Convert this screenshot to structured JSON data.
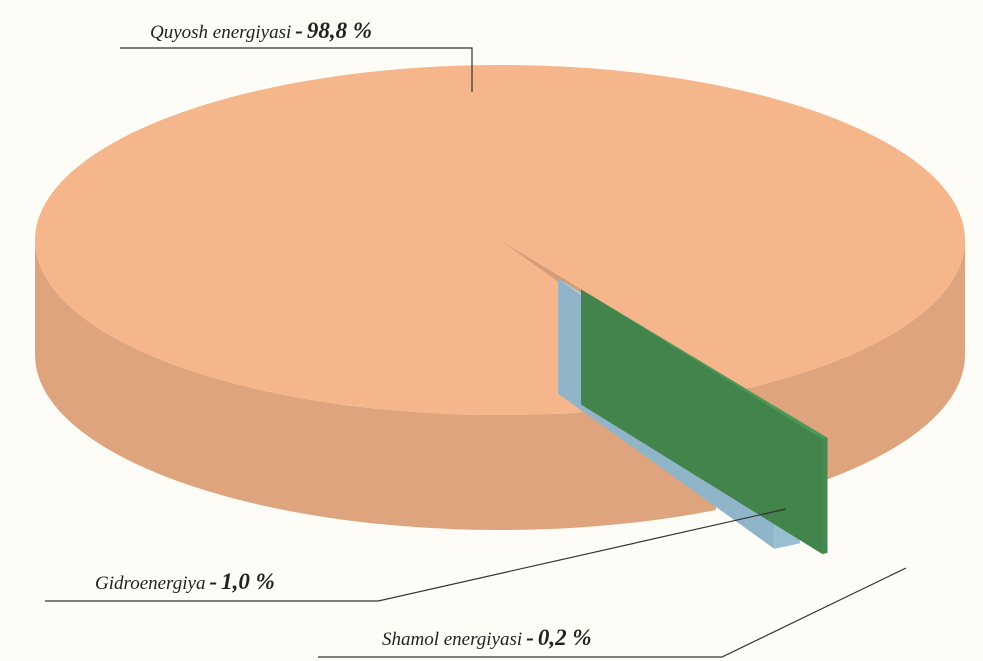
{
  "chart_data": {
    "type": "pie",
    "categories": [
      "Quyosh energiyasi",
      "Gidroenergiya",
      "Shamol energiyasi"
    ],
    "values": [
      98.8,
      1.0,
      0.2
    ],
    "value_labels": [
      "98,8 %",
      "1,0 %",
      "0,2 %"
    ],
    "separator": "-",
    "colors": [
      "#f6b68c",
      "#a8d3e8",
      "#4e9858"
    ]
  }
}
